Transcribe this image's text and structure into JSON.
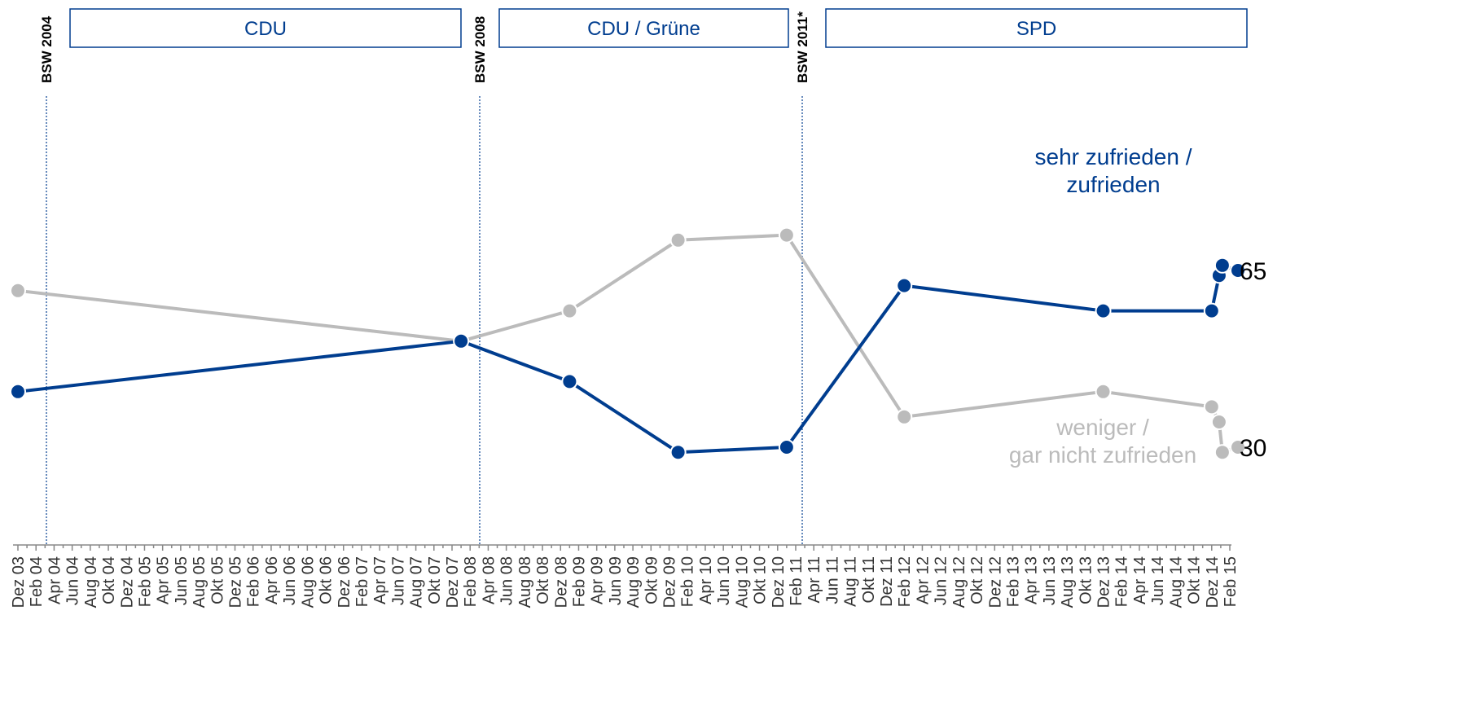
{
  "chart_data": {
    "type": "line",
    "x_ticks": [
      "Dez 03",
      "Feb 04",
      "Apr 04",
      "Jun 04",
      "Aug 04",
      "Okt 04",
      "Dez 04",
      "Feb 05",
      "Apr 05",
      "Jun 05",
      "Aug 05",
      "Okt 05",
      "Dez 05",
      "Feb 06",
      "Apr 06",
      "Jun 06",
      "Aug 06",
      "Okt 06",
      "Dez 06",
      "Feb 07",
      "Apr 07",
      "Jun 07",
      "Aug 07",
      "Okt 07",
      "Dez 07",
      "Feb 08",
      "Apr 08",
      "Jun 08",
      "Aug 08",
      "Okt 08",
      "Dez 08",
      "Feb 09",
      "Apr 09",
      "Jun 09",
      "Aug 09",
      "Okt 09",
      "Dez 09",
      "Feb 10",
      "Apr 10",
      "Jun 10",
      "Aug 10",
      "Okt 10",
      "Dez 10",
      "Feb 11",
      "Apr 11",
      "Jun 11",
      "Aug 11",
      "Okt 11",
      "Dez 11",
      "Feb 12",
      "Apr 12",
      "Jun 12",
      "Aug 12",
      "Okt 12",
      "Dez 12",
      "Feb 13",
      "Apr 13",
      "Jun 13",
      "Aug 13",
      "Okt 13",
      "Dez 13",
      "Feb 14",
      "Apr 14",
      "Jun 14",
      "Aug 14",
      "Okt 14",
      "Dez 14",
      "Feb 15"
    ],
    "series": [
      {
        "name": "sehr zufrieden / zufrieden",
        "color": "#003d8f",
        "label_lines": [
          "sehr zufrieden /",
          "zufrieden"
        ],
        "points": [
          {
            "x": "Dez 03",
            "y": 41
          },
          {
            "x": "Jan 08",
            "y": 51
          },
          {
            "x": "Jan 09",
            "y": 43
          },
          {
            "x": "Jan 10",
            "y": 29
          },
          {
            "x": "Jan 11",
            "y": 30
          },
          {
            "x": "Feb 12",
            "y": 62
          },
          {
            "x": "Dez 13",
            "y": 57
          },
          {
            "x": "Dez 14",
            "y": 57
          },
          {
            "x": "Jan 15",
            "y": 64
          },
          {
            "x": "Jan 15",
            "y": 66
          },
          {
            "x": "Feb 15",
            "y": 65
          }
        ]
      },
      {
        "name": "weniger / gar nicht zufrieden",
        "color": "#bbbbbb",
        "label_lines": [
          "weniger /",
          "gar nicht zufrieden"
        ],
        "points": [
          {
            "x": "Dez 03",
            "y": 61
          },
          {
            "x": "Jan 08",
            "y": 51
          },
          {
            "x": "Jan 09",
            "y": 57
          },
          {
            "x": "Jan 10",
            "y": 71
          },
          {
            "x": "Jan 11",
            "y": 72
          },
          {
            "x": "Feb 12",
            "y": 36
          },
          {
            "x": "Dez 13",
            "y": 41
          },
          {
            "x": "Dez 14",
            "y": 38
          },
          {
            "x": "Jan 15",
            "y": 35
          },
          {
            "x": "Jan 15",
            "y": 29
          },
          {
            "x": "Feb 15",
            "y": 30
          }
        ]
      }
    ],
    "end_values": [
      "65",
      "30"
    ],
    "elections": [
      "BSW 2004",
      "BSW 2008",
      "BSW 2011*"
    ],
    "periods": [
      "CDU",
      "CDU / Grüne",
      "SPD"
    ],
    "ylim": [
      0,
      100
    ],
    "grid": false
  }
}
